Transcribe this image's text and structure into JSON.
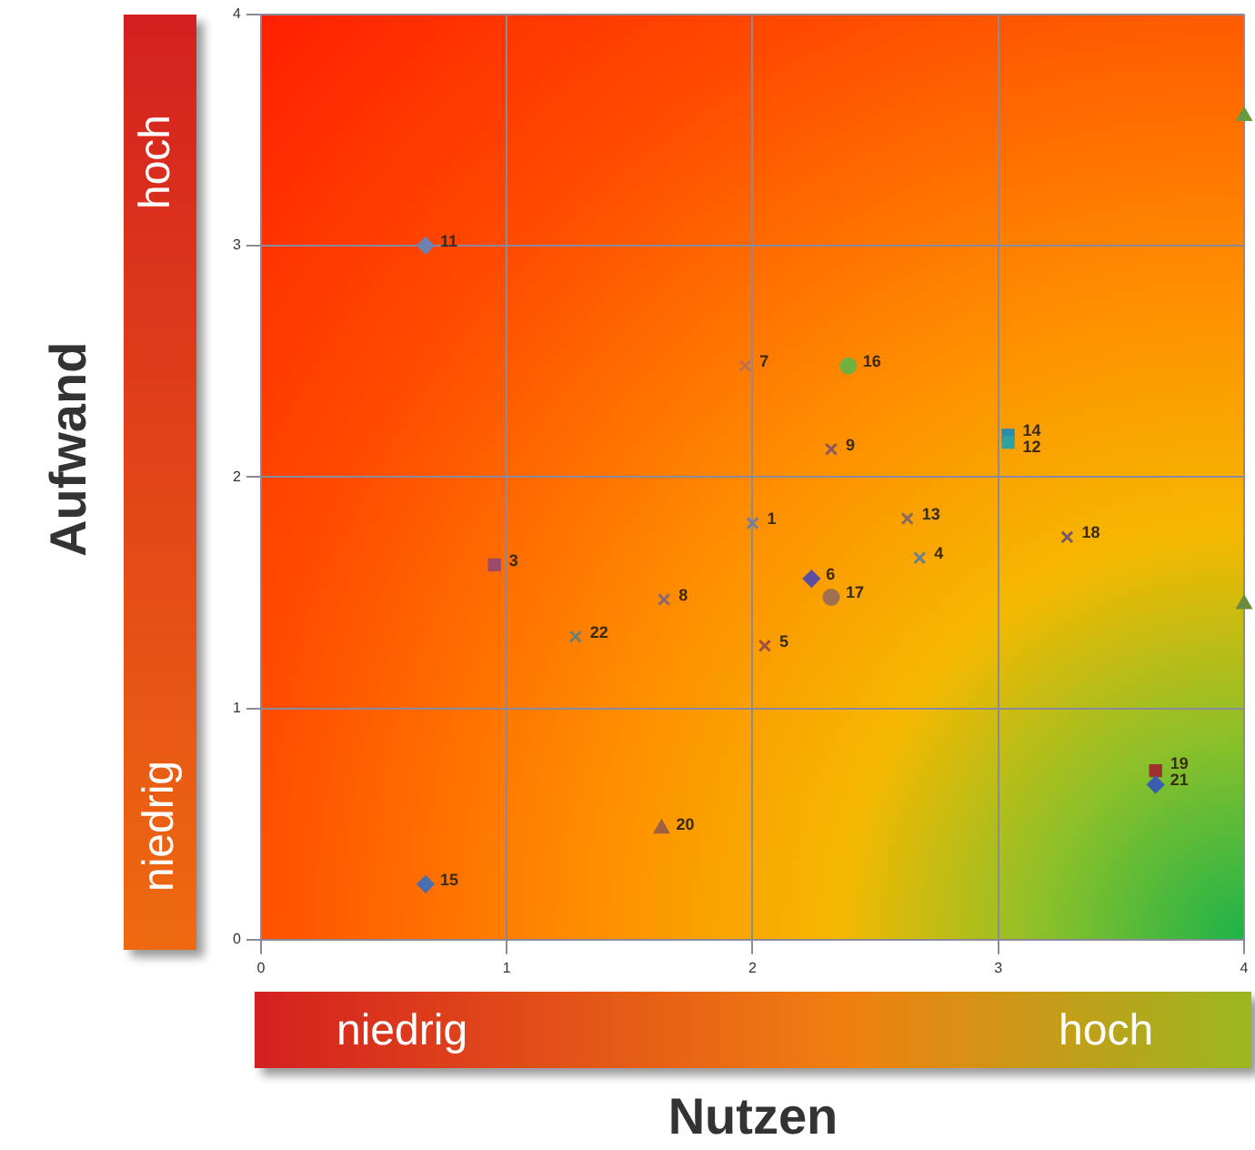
{
  "chart_data": {
    "type": "scatter",
    "xlabel": "Nutzen",
    "ylabel": "Aufwand",
    "xlim": [
      0,
      4
    ],
    "ylim": [
      0,
      4
    ],
    "xticks": [
      0,
      1,
      2,
      3,
      4
    ],
    "yticks": [
      0,
      1,
      2,
      3,
      4
    ],
    "grid": true,
    "legend": false,
    "annotations": [
      "hoch",
      "niedrig",
      "niedrig",
      "hoch",
      {
        "text": "6",
        "x": 2.24,
        "y": 1.56
      },
      {
        "text": "15",
        "x": 0.67,
        "y": 0.24
      },
      {
        "text": "21",
        "x": 3.64,
        "y": 0.67
      },
      {
        "text": "11",
        "x": 0.67,
        "y": 3.0
      },
      {
        "text": "3",
        "x": 0.95,
        "y": 1.62
      },
      {
        "text": "19",
        "x": 3.64,
        "y": 0.73
      },
      {
        "text": "14",
        "x": 3.04,
        "y": 2.18
      },
      {
        "text": "12",
        "x": 3.04,
        "y": 2.15
      },
      {
        "text": "20",
        "x": 1.63,
        "y": 0.48
      },
      {
        "text": "1",
        "x": 2.0,
        "y": 1.8
      },
      {
        "text": "4",
        "x": 2.68,
        "y": 1.65
      },
      {
        "text": "9",
        "x": 2.32,
        "y": 2.12
      },
      {
        "text": "18",
        "x": 3.28,
        "y": 1.74
      },
      {
        "text": "8",
        "x": 1.64,
        "y": 1.47
      },
      {
        "text": "13",
        "x": 2.63,
        "y": 1.82
      },
      {
        "text": "5",
        "x": 2.05,
        "y": 1.27
      },
      {
        "text": "22",
        "x": 1.28,
        "y": 1.31
      },
      {
        "text": "7",
        "x": 1.97,
        "y": 2.48
      },
      {
        "text": "16",
        "x": 2.39,
        "y": 2.48
      },
      {
        "text": "17",
        "x": 2.32,
        "y": 1.48
      }
    ],
    "series": [
      {
        "marker": "diamond",
        "x": [
          2.24,
          0.67,
          3.64,
          0.67
        ],
        "values": [
          1.56,
          0.24,
          0.67,
          3.0
        ],
        "colors": [
          "#5a4fa0",
          "#4a6fb0",
          "#3a5fb0",
          "#7080b0"
        ]
      },
      {
        "marker": "square",
        "x": [
          0.95,
          3.64,
          3.04,
          3.04
        ],
        "values": [
          1.62,
          0.73,
          2.18,
          2.15
        ],
        "colors": [
          "#9a4a6a",
          "#a03030",
          "#2a8ab0",
          "#30a0a0"
        ]
      },
      {
        "marker": "triangle",
        "x": [
          1.63,
          4.0,
          4.0
        ],
        "values": [
          0.48,
          3.56,
          1.45
        ],
        "colors": [
          "#a06040",
          "#6a9a40",
          "#6a8a40"
        ]
      },
      {
        "marker": "cross",
        "x": [
          2.0,
          2.68,
          2.32,
          3.28,
          1.64,
          2.63,
          2.05,
          1.28,
          1.97
        ],
        "values": [
          1.8,
          1.65,
          2.12,
          1.74,
          1.47,
          1.82,
          1.27,
          1.31,
          2.48
        ],
        "colors": [
          "#7080a0",
          "#6a8090",
          "#8a5a60",
          "#7a5a60",
          "#8a6a70",
          "#8a6a60",
          "#a05040",
          "#708070",
          "#c07050"
        ]
      },
      {
        "marker": "circle",
        "x": [
          2.39,
          2.32
        ],
        "values": [
          2.48,
          1.48
        ],
        "colors": [
          "#70b040",
          "#a07050"
        ]
      }
    ]
  }
}
